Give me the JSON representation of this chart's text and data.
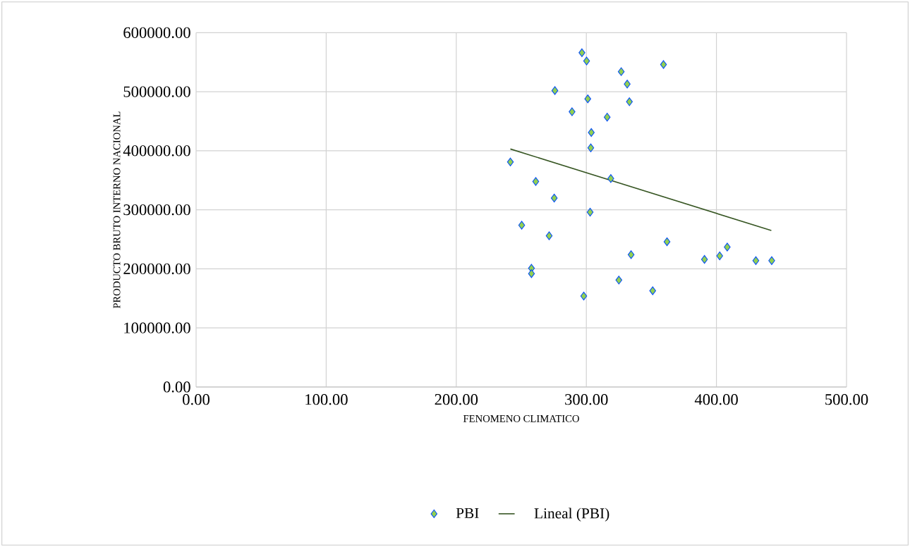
{
  "chart_data": {
    "type": "scatter",
    "xlabel": "FENOMENO CLIMATICO",
    "ylabel": "PRODUCTO BRUTO INTERNO NACIONAL",
    "xlim": [
      0,
      500
    ],
    "ylim": [
      0,
      600000
    ],
    "xticks": [
      {
        "value": 0,
        "label": "0.00"
      },
      {
        "value": 100,
        "label": "100.00"
      },
      {
        "value": 200,
        "label": "200.00"
      },
      {
        "value": 300,
        "label": "300.00"
      },
      {
        "value": 400,
        "label": "400.00"
      },
      {
        "value": 500,
        "label": "500.00"
      }
    ],
    "yticks": [
      {
        "value": 0,
        "label": "0.00"
      },
      {
        "value": 100000,
        "label": "100000.00"
      },
      {
        "value": 200000,
        "label": "200000.00"
      },
      {
        "value": 300000,
        "label": "300000.00"
      },
      {
        "value": 400000,
        "label": "400000.00"
      },
      {
        "value": 500000,
        "label": "500000.00"
      },
      {
        "value": 600000,
        "label": "600000.00"
      }
    ],
    "grid": true,
    "legend": "bottom",
    "marker": "diamond",
    "series": [
      {
        "name": "PBI",
        "color": "#92d050",
        "x": [
          296.6,
          300.2,
          359.3,
          326.8,
          331.4,
          275.8,
          301.1,
          333.1,
          289,
          316,
          303.8,
          303.4,
          241.6,
          318.8,
          261.1,
          275.3,
          302.9,
          250.3,
          271.4,
          362,
          334.4,
          257.8,
          257.8,
          325,
          351,
          298,
          390.8,
          402.5,
          408.3,
          430.3,
          442.5
        ],
        "values": [
          566000,
          552000,
          546000,
          534000,
          513000,
          502000,
          488000,
          483000,
          466000,
          457000,
          431000,
          405000,
          381000,
          353000,
          348000,
          320000,
          296000,
          274000,
          256000,
          246000,
          224000,
          201000,
          192000,
          181000,
          163000,
          154000,
          216000,
          222000,
          237000,
          214000,
          214000
        ]
      },
      {
        "name": "Lineal (PBI)",
        "type": "line",
        "color": "#375623",
        "line_style": "solid",
        "marker": "none",
        "x": [
          241.6,
          442.2
        ],
        "values": [
          403000,
          265000
        ]
      }
    ]
  }
}
